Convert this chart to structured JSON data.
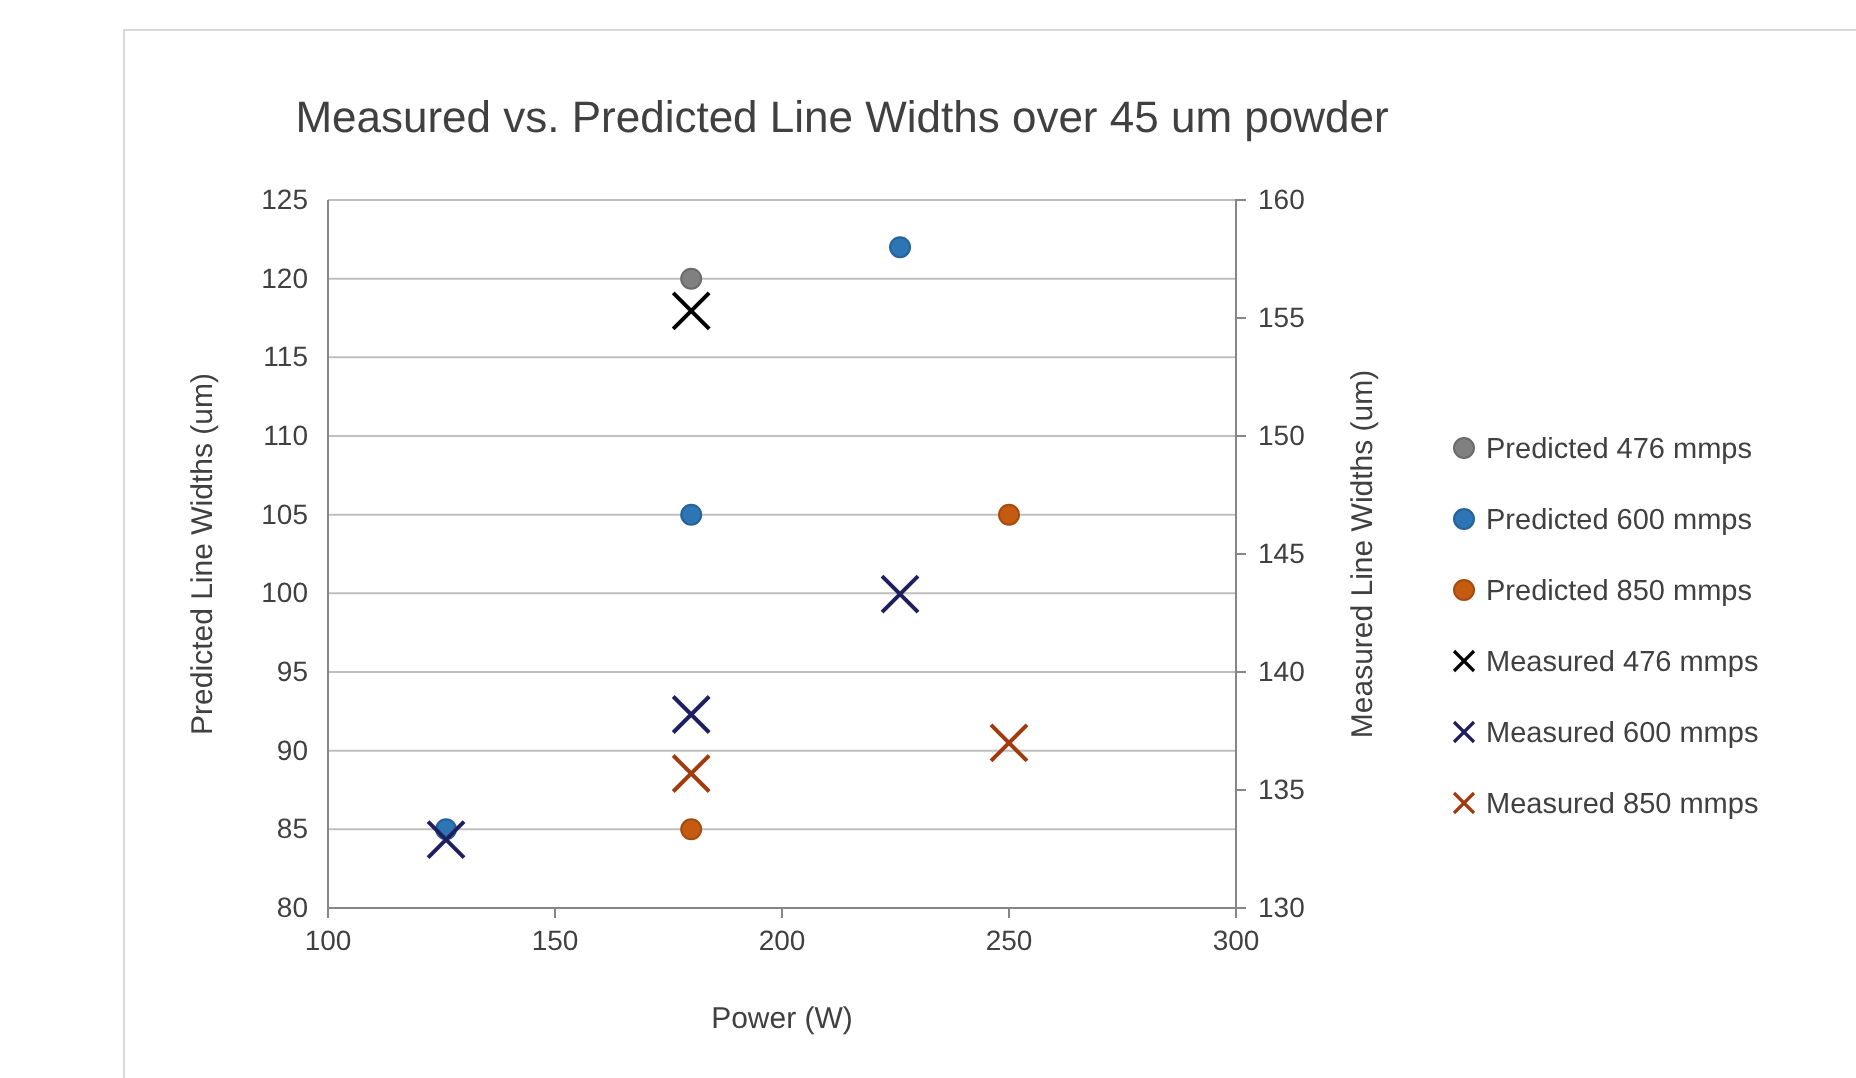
{
  "chart_data": {
    "type": "scatter",
    "title": "Measured vs. Predicted Line Widths over 45 um powder",
    "xlabel": "Power (W)",
    "ylabel": "Predicted Line Widths (um)",
    "y2label": "Measured Line Widths (um)",
    "xlim": [
      100,
      300
    ],
    "xticks": [
      100,
      150,
      200,
      250,
      300
    ],
    "ylim": [
      80,
      125
    ],
    "yticks": [
      80,
      85,
      90,
      95,
      100,
      105,
      110,
      115,
      120,
      125
    ],
    "y2lim": [
      130,
      160
    ],
    "y2ticks": [
      130,
      135,
      140,
      145,
      150,
      155,
      160
    ],
    "grid": "y",
    "legend": "right",
    "series": [
      {
        "name": "Predicted 476 mmps",
        "color": "#808080",
        "marker": "circle",
        "x": [
          180
        ],
        "values": [
          120
        ]
      },
      {
        "name": "Predicted 600 mmps",
        "color": "#2e75b6",
        "marker": "circle",
        "x": [
          126,
          180,
          226
        ],
        "values": [
          85,
          105,
          122
        ]
      },
      {
        "name": "Predicted 850 mmps",
        "color": "#c55a11",
        "marker": "circle",
        "x": [
          180,
          250
        ],
        "values": [
          85,
          105
        ]
      },
      {
        "name": "Measured 476 mmps",
        "color": "#000000",
        "marker": "cross",
        "axis": "y2",
        "x": [
          180
        ],
        "values": [
          155.3
        ]
      },
      {
        "name": "Measured 600 mmps",
        "color": "#1f1f5f",
        "marker": "cross",
        "axis": "y2",
        "x": [
          126,
          180,
          226
        ],
        "values": [
          132.9,
          138.2,
          143.3
        ]
      },
      {
        "name": "Measured 850 mmps",
        "color": "#a33a0e",
        "marker": "cross",
        "axis": "y2",
        "x": [
          180,
          250
        ],
        "values": [
          135.7,
          137.0
        ]
      }
    ]
  }
}
